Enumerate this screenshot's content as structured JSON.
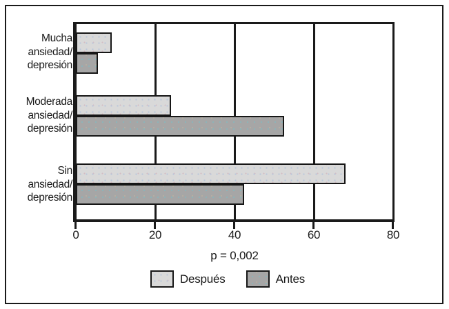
{
  "chart_data": {
    "type": "bar",
    "orientation": "horizontal",
    "title": "",
    "xlabel": "",
    "ylabel": "",
    "categories": [
      "Mucha\nansiedad/\ndepresión",
      "Moderada\nansiedad/\ndepresión",
      "Sin\nansiedad/\ndepresión"
    ],
    "series": [
      {
        "name": "Después",
        "values": [
          9,
          24,
          68
        ],
        "color": "#d9d9d9"
      },
      {
        "name": "Antes",
        "values": [
          5.5,
          52.5,
          42.5
        ],
        "color": "#a6a6a6"
      }
    ],
    "x_ticks": [
      "0",
      "20",
      "40",
      "60",
      "80"
    ],
    "xlim": [
      0,
      80
    ],
    "grid": "vertical gridlines at 20, 40, 60, 80",
    "legend_position": "bottom",
    "annotation": "p = 0,002"
  },
  "legend": {
    "items": [
      {
        "label": "Después",
        "color": "#d9d9d9"
      },
      {
        "label": "Antes",
        "color": "#a6a6a6"
      }
    ]
  }
}
